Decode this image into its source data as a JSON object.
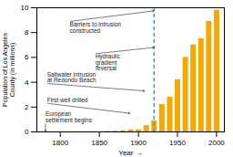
{
  "chart_data": {
    "type": "bar",
    "xlabel": "Year",
    "ylabel": "Population of Los Angeles\nCounty (in millions)",
    "x": [
      1860,
      1870,
      1880,
      1890,
      1900,
      1910,
      1920,
      1930,
      1940,
      1950,
      1960,
      1970,
      1980,
      1990,
      2000
    ],
    "values": [
      0.04,
      0.06,
      0.1,
      0.16,
      0.17,
      0.5,
      0.9,
      2.2,
      2.8,
      4.2,
      6.0,
      7.0,
      7.5,
      8.9,
      9.8
    ],
    "color": "#f5a800",
    "xlim": [
      1770,
      2010
    ],
    "ylim": [
      0,
      10
    ],
    "xticks": [
      1800,
      1850,
      1900,
      1950,
      2000
    ],
    "yticks": [
      0,
      2,
      4,
      6,
      8,
      10
    ],
    "vline": {
      "x": 1920,
      "color": "#00bcd4",
      "line_style": "dashed"
    },
    "annotations": [
      {
        "text": "Barriers to intrusion\nconstructed",
        "x": 1920,
        "y": 9.75,
        "text_x": 1812,
        "text_y": 8.9
      },
      {
        "text": "Hydraulic\ngradient\nreversal",
        "x": 1920,
        "y": 6.8,
        "text_x": 1845,
        "text_y": 6.3
      },
      {
        "text": "Saltwater intrusion\nat Redondo Beach",
        "x": 1908,
        "y": 3.3,
        "text_x": 1783,
        "text_y": 3.9
      },
      {
        "text": "First well drilled",
        "x": 1889,
        "y": 1.5,
        "text_x": 1783,
        "text_y": 2.3
      },
      {
        "text": "European\nsettlement begins",
        "x": 1781,
        "y": 0.05,
        "text_x": 1781,
        "text_y": 0.7
      }
    ]
  }
}
